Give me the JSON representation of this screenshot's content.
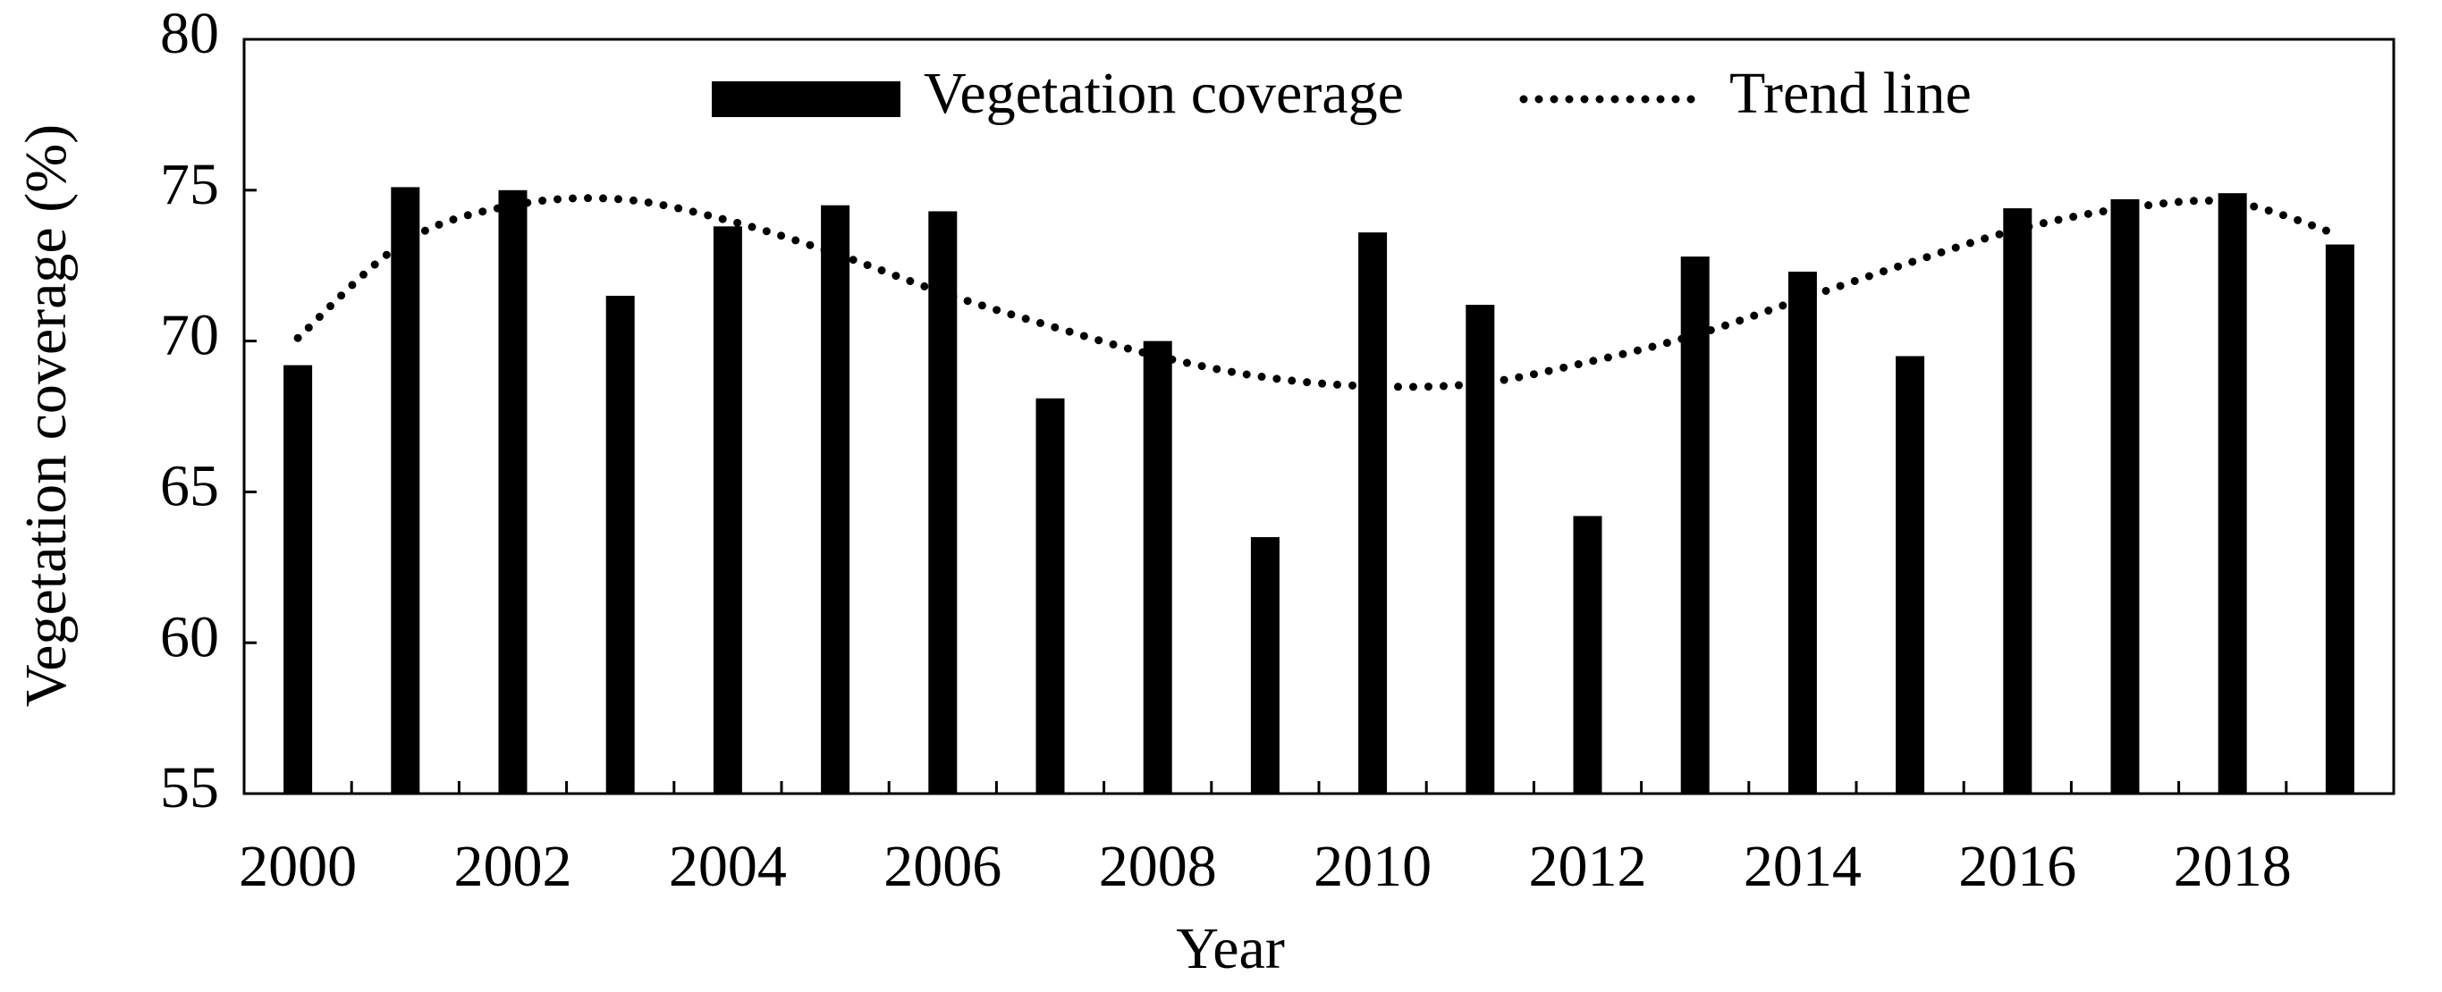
{
  "chart_data": {
    "type": "bar",
    "x_label": "Year",
    "y_label": "Vegetation coverage (%)",
    "categories": [
      "2000",
      null,
      "2002",
      null,
      "2004",
      null,
      "2006",
      null,
      "2008",
      null,
      "2010",
      null,
      "2012",
      null,
      "2014",
      null,
      "2016",
      null,
      "2018",
      null
    ],
    "series": [
      {
        "name": "Vegetation coverage",
        "type": "bar",
        "color": "#000000",
        "values": [
          69.2,
          75.1,
          75.0,
          71.5,
          73.8,
          74.5,
          74.3,
          68.1,
          70.0,
          63.5,
          73.6,
          71.2,
          64.2,
          72.8,
          72.3,
          69.5,
          74.4,
          74.7,
          74.9,
          73.2
        ]
      },
      {
        "name": "Trend line",
        "type": "line",
        "style": "dotted",
        "color": "#000000",
        "values": [
          70.1,
          73.3,
          74.5,
          74.7,
          74.0,
          72.9,
          71.6,
          70.5,
          69.5,
          68.8,
          68.5,
          68.6,
          69.3,
          70.2,
          71.4,
          72.6,
          73.7,
          74.4,
          74.6,
          73.5
        ]
      }
    ],
    "ylim": [
      55,
      80
    ],
    "yticks": [
      55,
      60,
      65,
      70,
      75,
      80
    ],
    "grid": false,
    "legend": "top"
  }
}
